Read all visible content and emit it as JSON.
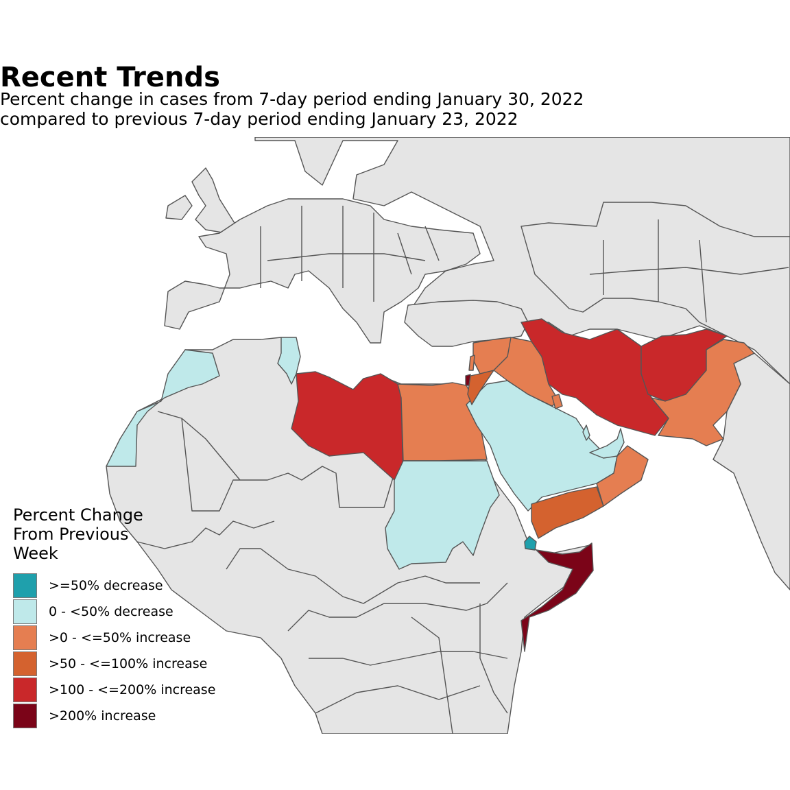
{
  "header": {
    "title": "Recent Trends",
    "subtitle_line1": "Percent change in cases from 7-day period ending January 30, 2022",
    "subtitle_line2": "compared to previous 7-day period ending January 23, 2022"
  },
  "legend": {
    "title": "Percent Change From Previous Week",
    "items": [
      {
        "label": ">=50% decrease",
        "color": "#1fa0ac"
      },
      {
        "label": "0 - <50% decrease",
        "color": "#bfe9ea"
      },
      {
        "label": ">0 - <=50% increase",
        "color": "#e57e51"
      },
      {
        "label": ">50 - <=100% increase",
        "color": "#d4622f"
      },
      {
        "label": ">100 - <=200% increase",
        "color": "#c9282a"
      },
      {
        "label": ">200% increase",
        "color": "#7b0418"
      }
    ]
  },
  "colors": {
    "no_data": "#e5e5e5",
    "border": "#555555",
    "water": "#ffffff"
  },
  "regions": [
    {
      "name": "Morocco",
      "category": 1
    },
    {
      "name": "Tunisia",
      "category": 1
    },
    {
      "name": "Saudi Arabia",
      "category": 1
    },
    {
      "name": "Sudan",
      "category": 1
    },
    {
      "name": "United Arab Emirates",
      "category": 1
    },
    {
      "name": "Qatar",
      "category": 1
    },
    {
      "name": "Djibouti",
      "category": 0
    },
    {
      "name": "Egypt",
      "category": 2
    },
    {
      "name": "Syria",
      "category": 2
    },
    {
      "name": "Iraq",
      "category": 2
    },
    {
      "name": "Oman",
      "category": 2
    },
    {
      "name": "Pakistan",
      "category": 2
    },
    {
      "name": "Kuwait",
      "category": 2
    },
    {
      "name": "Lebanon",
      "category": 2
    },
    {
      "name": "Jordan",
      "category": 3
    },
    {
      "name": "Yemen",
      "category": 3
    },
    {
      "name": "Libya",
      "category": 4
    },
    {
      "name": "Iran",
      "category": 4
    },
    {
      "name": "Afghanistan",
      "category": 4
    },
    {
      "name": "Somalia",
      "category": 5
    },
    {
      "name": "Palestine",
      "category": 5
    }
  ]
}
